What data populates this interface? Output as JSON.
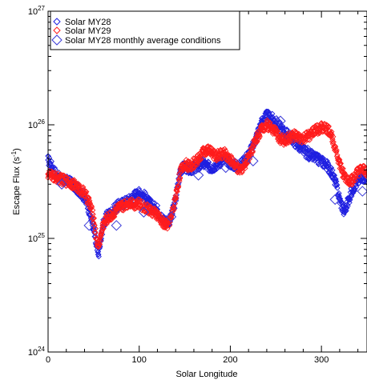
{
  "chart_data": {
    "type": "scatter",
    "xlabel": "Solar Longitude",
    "ylabel_text": "Escape Flux (s",
    "ylabel_sup": "-1",
    "ylabel_close": ")",
    "xlim": [
      0,
      350
    ],
    "ylim": [
      1e+24,
      1e+27
    ],
    "yscale": "log",
    "x_ticks": [
      0,
      100,
      200,
      300
    ],
    "y_ticks": [
      {
        "value": 1e+24,
        "base": "10",
        "exp": "24"
      },
      {
        "value": 1e+25,
        "base": "10",
        "exp": "25"
      },
      {
        "value": 1e+26,
        "base": "10",
        "exp": "26"
      },
      {
        "value": 1e+27,
        "base": "10",
        "exp": "27"
      }
    ],
    "legend_position": "top-left",
    "series": [
      {
        "name": "Solar MY28",
        "color": "#1f1fe0",
        "marker": "diamond-small",
        "x": [
          0,
          5,
          10,
          15,
          20,
          25,
          30,
          35,
          40,
          45,
          50,
          53,
          55,
          58,
          60,
          65,
          70,
          75,
          80,
          85,
          90,
          95,
          100,
          105,
          110,
          115,
          120,
          125,
          130,
          135,
          140,
          145,
          150,
          155,
          160,
          165,
          170,
          175,
          180,
          185,
          190,
          195,
          200,
          205,
          210,
          215,
          220,
          225,
          230,
          235,
          240,
          245,
          250,
          255,
          260,
          265,
          270,
          275,
          280,
          285,
          290,
          295,
          300,
          305,
          310,
          315,
          320,
          325,
          330,
          335,
          340,
          345,
          350
        ],
        "y": [
          4.9e+25,
          4.2e+25,
          3.5e+25,
          3.3e+25,
          3.2e+25,
          3.1e+25,
          2.8e+25,
          2.6e+25,
          2.3e+25,
          1.8e+25,
          1.2e+25,
          8.5e+24,
          7.2e+24,
          9.5e+24,
          1.3e+25,
          1.6e+25,
          1.7e+25,
          1.9e+25,
          2e+25,
          2.1e+25,
          2.2e+25,
          2.4e+25,
          2.5e+25,
          2.4e+25,
          2.1e+25,
          1.9e+25,
          1.8e+25,
          1.5e+25,
          1.4e+25,
          1.5e+25,
          2.2e+25,
          4e+25,
          4.3e+25,
          4e+25,
          4.2e+25,
          4.3e+25,
          4.6e+25,
          4.3e+25,
          4.2e+25,
          4.5e+25,
          4.8e+25,
          5e+25,
          4.6e+25,
          4.4e+25,
          4.3e+25,
          4.8e+25,
          5.5e+25,
          6.5e+25,
          8.5e+25,
          1.08e+26,
          1.2e+26,
          1.15e+26,
          1.05e+26,
          9.5e+25,
          8.5e+25,
          8e+25,
          7.2e+25,
          6.5e+25,
          6e+25,
          5.5e+25,
          5.3e+25,
          5e+25,
          4.8e+25,
          4.5e+25,
          4e+25,
          3.2e+25,
          2.2e+25,
          1.7e+25,
          2.2e+25,
          2.8e+25,
          3.2e+25,
          3.5e+25,
          3.4e+25
        ]
      },
      {
        "name": "Solar MY29",
        "color": "#ff1c1c",
        "marker": "diamond-small",
        "x": [
          0,
          5,
          10,
          15,
          20,
          25,
          30,
          35,
          40,
          45,
          50,
          53,
          55,
          58,
          60,
          65,
          70,
          75,
          80,
          85,
          90,
          95,
          100,
          105,
          110,
          115,
          120,
          125,
          130,
          135,
          140,
          145,
          150,
          155,
          160,
          165,
          170,
          175,
          180,
          185,
          190,
          195,
          200,
          205,
          210,
          215,
          220,
          225,
          230,
          235,
          240,
          245,
          250,
          255,
          260,
          265,
          270,
          275,
          280,
          285,
          290,
          295,
          300,
          305,
          310,
          315,
          320,
          325,
          330,
          335,
          340,
          345,
          350
        ],
        "y": [
          3.7e+25,
          3.5e+25,
          3.4e+25,
          3.3e+25,
          3.2e+25,
          3.1e+25,
          2.9e+25,
          2.7e+25,
          2.5e+25,
          2.1e+25,
          1.5e+25,
          1e+25,
          8.5e+24,
          1.05e+25,
          1.3e+25,
          1.5e+25,
          1.6e+25,
          1.8e+25,
          1.9e+25,
          2e+25,
          2.1e+25,
          2e+25,
          2e+25,
          1.9e+25,
          1.8e+25,
          1.7e+25,
          1.6e+25,
          1.4e+25,
          1.3e+25,
          1.5e+25,
          2.3e+25,
          3.8e+25,
          4.5e+25,
          4.3e+25,
          4.6e+25,
          5e+25,
          5.8e+25,
          6e+25,
          5.6e+25,
          5.3e+25,
          5.6e+25,
          5.5e+25,
          5e+25,
          4.4e+25,
          3.9e+25,
          4.4e+25,
          5.2e+25,
          6.5e+25,
          8e+25,
          9.5e+25,
          1e+26,
          9.5e+25,
          8.5e+25,
          7.5e+25,
          7.2e+25,
          7.8e+25,
          8e+25,
          7.6e+25,
          7.5e+25,
          7.9e+25,
          8.5e+25,
          9e+25,
          9.5e+25,
          9.3e+25,
          8.5e+25,
          6.5e+25,
          4.5e+25,
          3.5e+25,
          3.2e+25,
          3.3e+25,
          3.8e+25,
          4e+25,
          3.8e+25
        ]
      },
      {
        "name": "Solar MY28 monthly average conditions",
        "color": "#3a3ad8",
        "marker": "diamond-large",
        "x": [
          15,
          45,
          75,
          105,
          135,
          165,
          195,
          225,
          255,
          285,
          315,
          345
        ],
        "y": [
          3e+25,
          1.3e+25,
          1.3e+25,
          1.7e+25,
          1.55e+25,
          3.6e+25,
          4.2e+25,
          4.8e+25,
          1.08e+26,
          6e+25,
          2.2e+25,
          2.6e+25
        ]
      }
    ]
  }
}
